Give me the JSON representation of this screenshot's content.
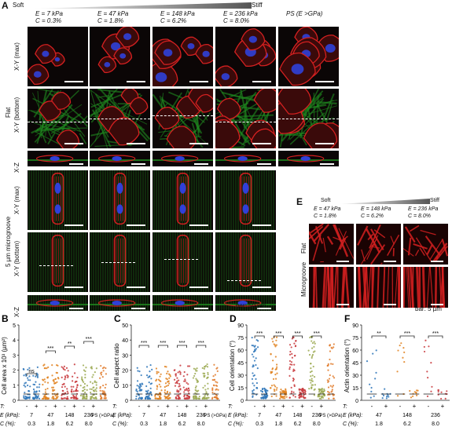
{
  "panelA": {
    "letter": "A",
    "soft": "Soft",
    "stiff": "Stiff",
    "columns": [
      {
        "e": "E = 7 kPa",
        "c": "C = 0.3%"
      },
      {
        "e": "E = 47 kPa",
        "c": "C = 1.8%"
      },
      {
        "e": "E = 148 kPa",
        "c": "C = 6.2%"
      },
      {
        "e": "E = 236 kPa",
        "c": "C = 8.0%"
      },
      {
        "e": "PS (E >GPa)",
        "c": ""
      }
    ],
    "group_flat": "Flat",
    "group_micro": "5 µm microgroove",
    "row_labels": [
      "X-Y (max)",
      "X-Y (bottom)",
      "X-Z",
      "X-Y (max)",
      "X-Y (bottom)",
      "X-Z"
    ],
    "bar": "bar: 50 µm"
  },
  "panelE": {
    "letter": "E",
    "soft": "Soft",
    "stiff": "Stiff",
    "columns": [
      {
        "e": "E = 47 kPa",
        "c": "C = 1.8%"
      },
      {
        "e": "E = 148 kPa",
        "c": "C = 6.2%"
      },
      {
        "e": "E = 236 kPa",
        "c": "C = 8.0%"
      }
    ],
    "row_labels": [
      "Flat",
      "Microgroove"
    ],
    "bar": "bar: 5 µm"
  },
  "plots": {
    "B": {
      "letter": "B",
      "ylabel": "Cell area x 10³ (µm²)",
      "yticks": [
        "0",
        "1",
        "2",
        "3",
        "4",
        "5"
      ],
      "sig": [
        "ns",
        "***",
        "**",
        "***"
      ],
      "ps": "PS (>GPa)"
    },
    "C": {
      "letter": "C",
      "ylabel": "Cell aspect ratio",
      "yticks": [
        "0",
        "10",
        "20",
        "30",
        "40",
        "50"
      ],
      "sig": [
        "***",
        "***",
        "***",
        "***"
      ],
      "ps": "PS (>GPa)"
    },
    "D": {
      "letter": "D",
      "ylabel": "Cell orientation (°)",
      "yticks": [
        "0",
        "15",
        "30",
        "45",
        "60",
        "75",
        "90"
      ],
      "sig": [
        "***",
        "***",
        "***",
        "***"
      ],
      "ps": "PS (>GPa)"
    },
    "F": {
      "letter": "F",
      "ylabel": "Actin orientation (°)",
      "yticks": [
        "0",
        "15",
        "30",
        "45",
        "60",
        "75",
        "90"
      ],
      "sig": [
        "**",
        "***",
        "***"
      ]
    }
  },
  "xaxis": {
    "T": "T:",
    "E": "E (kPa):",
    "C": "C (%):",
    "minus": "-",
    "plus": "+",
    "E_vals": [
      "7",
      "47",
      "148",
      "236"
    ],
    "C_vals": [
      "0.3",
      "1.8",
      "6.2",
      "8.0"
    ],
    "E_vals_F": [
      "47",
      "148",
      "236"
    ],
    "C_vals_F": [
      "1.8",
      "6.2",
      "8.0"
    ]
  },
  "colors": {
    "group1": "#2c74b8",
    "group2": "#e0811f",
    "group3": "#c8373b",
    "group4": "#9aa84f",
    "group5": "#4aa8a0",
    "group6": "#e07a2a",
    "actin": "#d42020",
    "nucleus": "#3040d8",
    "groove": "#1f8a1f"
  }
}
